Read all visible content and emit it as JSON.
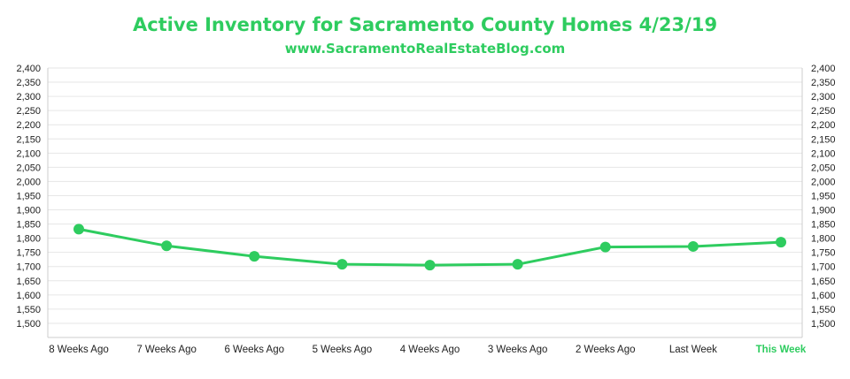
{
  "colors": {
    "accent": "#2ecc5f",
    "grid": "#e6e6e6",
    "axis": "#cccccc",
    "text": "#222222"
  },
  "chart_data": {
    "type": "line",
    "title": "Active Inventory for Sacramento County Homes 4/23/19",
    "subtitle": "www.SacramentoRealEstateBlog.com",
    "categories": [
      "8 Weeks Ago",
      "7 Weeks Ago",
      "6 Weeks Ago",
      "5 Weeks Ago",
      "4 Weeks Ago",
      "3 Weeks Ago",
      "2 Weeks Ago",
      "Last Week",
      "This Week"
    ],
    "highlight_category": "This Week",
    "series": [
      {
        "values": [
          1832,
          1773,
          1736,
          1708,
          1705,
          1708,
          1769,
          1771,
          1786
        ]
      }
    ],
    "ylim": [
      1450,
      2400
    ],
    "yticks": [
      "2,400",
      "2,350",
      "2,300",
      "2,250",
      "2,200",
      "2,150",
      "2,100",
      "2,050",
      "2,000",
      "1,950",
      "1,900",
      "1,850",
      "1,800",
      "1,750",
      "1,700",
      "1,650",
      "1,600",
      "1,550",
      "1,500"
    ],
    "ytick_values": [
      2400,
      2350,
      2300,
      2250,
      2200,
      2150,
      2100,
      2050,
      2000,
      1950,
      1900,
      1850,
      1800,
      1750,
      1700,
      1650,
      1600,
      1550,
      1500
    ],
    "dual_y_axis": true,
    "grid": true,
    "legend": "none"
  }
}
